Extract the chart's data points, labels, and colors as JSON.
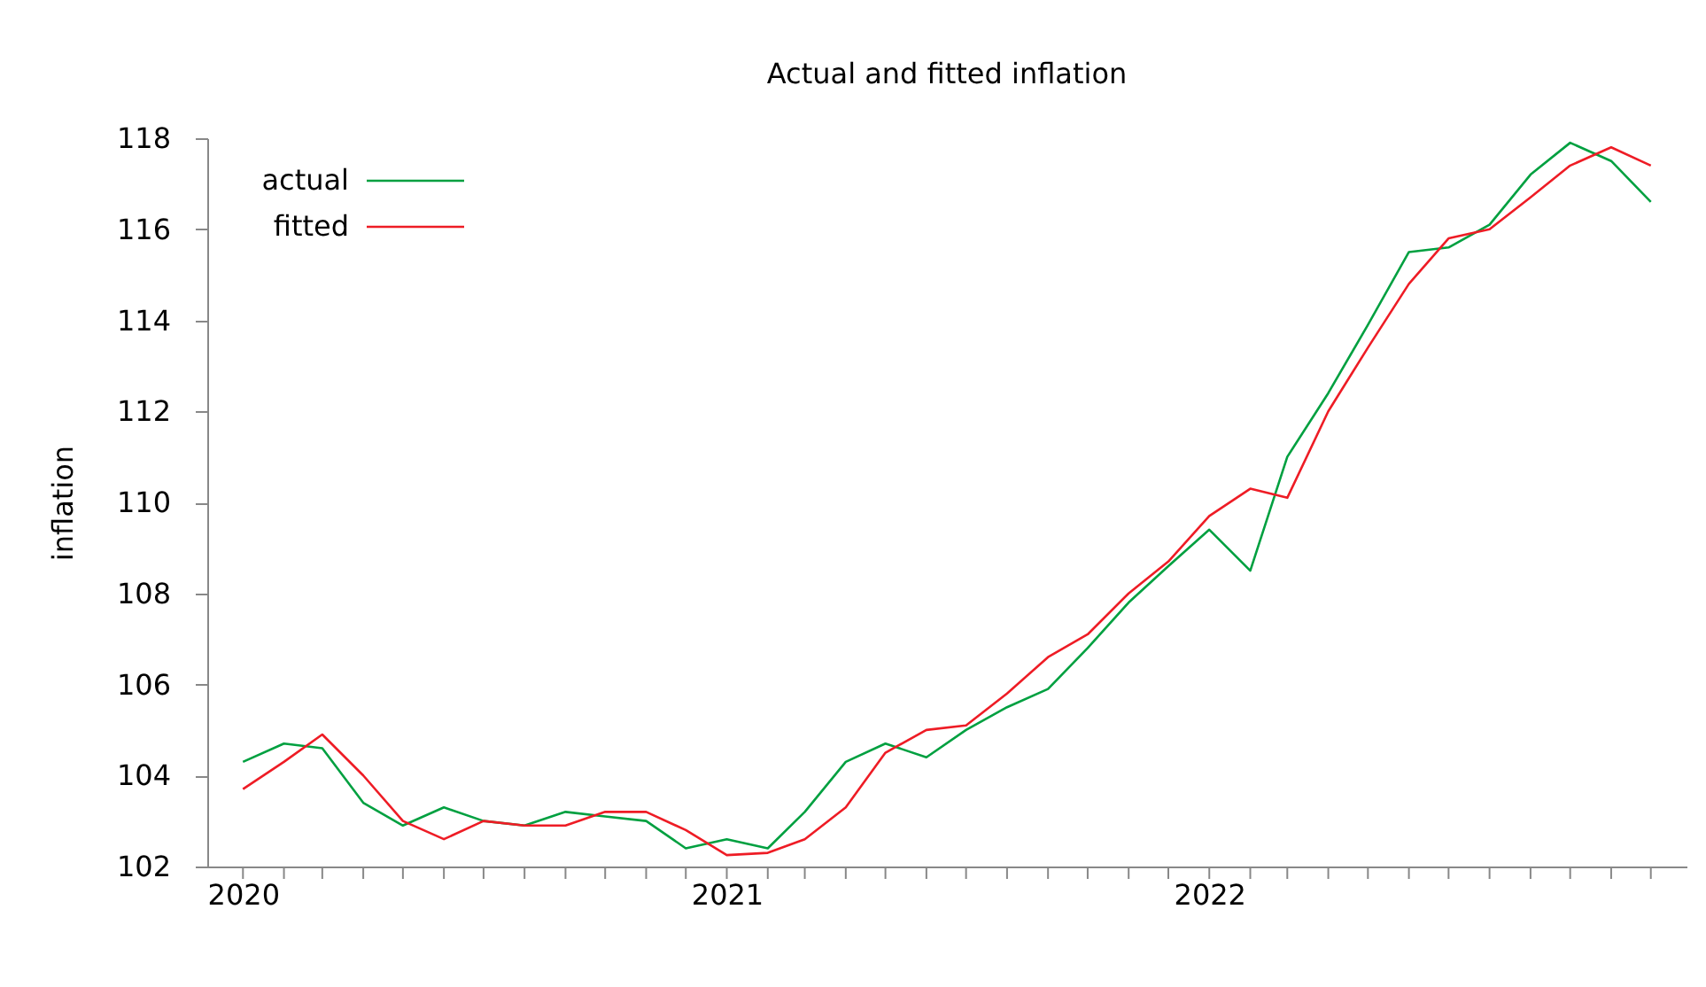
{
  "chart_data": {
    "type": "line",
    "title": "Actual and fitted inflation",
    "ylabel": "inflation",
    "x": [
      "2020-01",
      "2020-02",
      "2020-03",
      "2020-04",
      "2020-05",
      "2020-06",
      "2020-07",
      "2020-08",
      "2020-09",
      "2020-10",
      "2020-11",
      "2020-12",
      "2021-01",
      "2021-02",
      "2021-03",
      "2021-04",
      "2021-05",
      "2021-06",
      "2021-07",
      "2021-08",
      "2021-09",
      "2021-10",
      "2021-11",
      "2021-12",
      "2022-01",
      "2022-02",
      "2022-03",
      "2022-04",
      "2022-05",
      "2022-06",
      "2022-07",
      "2022-08",
      "2022-09",
      "2022-10",
      "2022-11",
      "2022-12"
    ],
    "series": [
      {
        "name": "actual",
        "color": "#00a040",
        "values": [
          104.3,
          104.7,
          104.6,
          103.4,
          102.9,
          103.3,
          103.0,
          102.9,
          103.2,
          103.1,
          103.0,
          102.4,
          102.6,
          102.4,
          103.2,
          104.3,
          104.7,
          104.4,
          105.0,
          105.5,
          105.9,
          106.8,
          107.8,
          108.6,
          109.4,
          108.5,
          111.0,
          112.4,
          113.9,
          115.5,
          115.6,
          116.1,
          117.2,
          117.9,
          117.5,
          116.6
        ]
      },
      {
        "name": "fitted",
        "color": "#ee1c25",
        "values": [
          103.7,
          104.3,
          104.9,
          104.0,
          103.0,
          102.6,
          103.0,
          102.9,
          102.9,
          103.2,
          103.2,
          102.8,
          102.25,
          102.3,
          102.6,
          103.3,
          104.5,
          105.0,
          105.1,
          105.8,
          106.6,
          107.1,
          108.0,
          108.7,
          109.7,
          110.3,
          110.1,
          112.0,
          113.4,
          114.8,
          115.8,
          116.0,
          116.7,
          117.4,
          117.8,
          117.4
        ]
      }
    ],
    "xlim": [
      "2019-12-05",
      "2022-12-28"
    ],
    "xticks": [
      {
        "value": "2020-01",
        "label": "2020"
      },
      {
        "value": "2020-02",
        "label": null
      },
      {
        "value": "2020-03",
        "label": null
      },
      {
        "value": "2020-04",
        "label": null
      },
      {
        "value": "2020-05",
        "label": null
      },
      {
        "value": "2020-06",
        "label": null
      },
      {
        "value": "2020-07",
        "label": null
      },
      {
        "value": "2020-08",
        "label": null
      },
      {
        "value": "2020-09",
        "label": null
      },
      {
        "value": "2020-10",
        "label": null
      },
      {
        "value": "2020-11",
        "label": null
      },
      {
        "value": "2020-12",
        "label": null
      },
      {
        "value": "2021-01",
        "label": "2021"
      },
      {
        "value": "2021-02",
        "label": null
      },
      {
        "value": "2021-03",
        "label": null
      },
      {
        "value": "2021-04",
        "label": null
      },
      {
        "value": "2021-05",
        "label": null
      },
      {
        "value": "2021-06",
        "label": null
      },
      {
        "value": "2021-07",
        "label": null
      },
      {
        "value": "2021-08",
        "label": null
      },
      {
        "value": "2021-09",
        "label": null
      },
      {
        "value": "2021-10",
        "label": null
      },
      {
        "value": "2021-11",
        "label": null
      },
      {
        "value": "2021-12",
        "label": null
      },
      {
        "value": "2022-01",
        "label": "2022"
      },
      {
        "value": "2022-02",
        "label": null
      },
      {
        "value": "2022-03",
        "label": null
      },
      {
        "value": "2022-04",
        "label": null
      },
      {
        "value": "2022-05",
        "label": null
      },
      {
        "value": "2022-06",
        "label": null
      },
      {
        "value": "2022-07",
        "label": null
      },
      {
        "value": "2022-08",
        "label": null
      },
      {
        "value": "2022-09",
        "label": null
      },
      {
        "value": "2022-10",
        "label": null
      },
      {
        "value": "2022-11",
        "label": null
      },
      {
        "value": "2022-12",
        "label": null
      }
    ],
    "ylim": [
      102,
      118
    ],
    "yticks": [
      102,
      104,
      106,
      108,
      110,
      112,
      114,
      116,
      118
    ],
    "grid": false,
    "legend": "top left",
    "marker": "none",
    "line_style": "solid"
  }
}
